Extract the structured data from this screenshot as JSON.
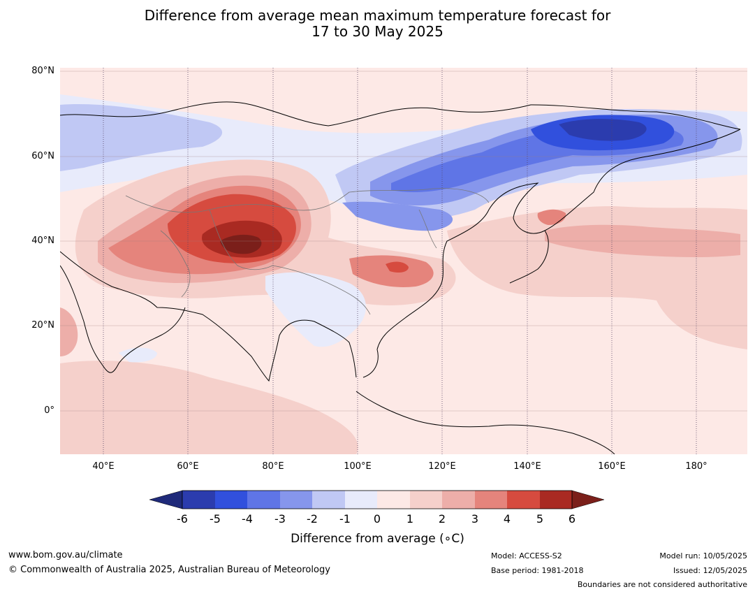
{
  "title": {
    "line1": "Difference from average mean maximum temperature forecast for",
    "line2": "17 to 30 May 2025"
  },
  "map": {
    "lat_labels": [
      "80°N",
      "60°N",
      "40°N",
      "20°N",
      "0°"
    ],
    "lon_labels": [
      "40°E",
      "60°E",
      "80°E",
      "100°E",
      "120°E",
      "140°E",
      "160°E",
      "180°"
    ],
    "palette": {
      "-6": "#1f2a7a",
      "-5": "#2b3cae",
      "-4": "#3150dd",
      "-3": "#5f75e6",
      "-2": "#8696ec",
      "-1": "#c0c8f4",
      "0": "#e8ebfb",
      "1": "#fde9e6",
      "2": "#f5d0cb",
      "3": "#edaea9",
      "4": "#e5847c",
      "5": "#d64b3f",
      "6": "#a92a22",
      "7": "#7b1f1a"
    }
  },
  "colorbar": {
    "ticks": [
      "-6",
      "-5",
      "-4",
      "-3",
      "-2",
      "-1",
      "0",
      "1",
      "2",
      "3",
      "4",
      "5",
      "6"
    ],
    "label": "Difference from average (∘C)"
  },
  "footer": {
    "website": "www.bom.gov.au/climate",
    "copyright": "© Commonwealth of Australia 2025, Australian Bureau of Meteorology",
    "model": "Model: ACCESS-S2",
    "base_period": "Base period: 1981-2018",
    "model_run": "Model run: 10/05/2025",
    "issued": "Issued: 12/05/2025",
    "disclaimer": "Boundaries are not considered authoritative"
  }
}
